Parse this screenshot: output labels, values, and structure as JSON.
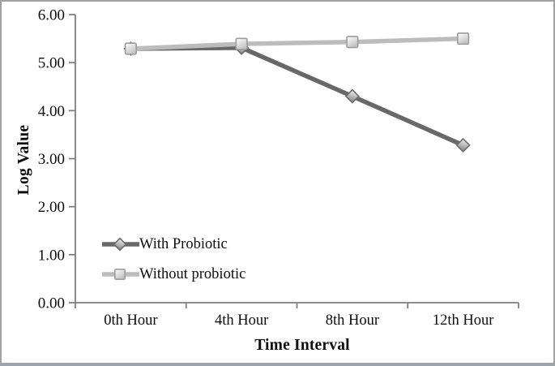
{
  "figure": {
    "background": "#ffffff",
    "frame_border_color": "#a2a2a2",
    "axis_color": "#7f7f7f",
    "text_color": "#0d0d0d"
  },
  "chart_data": {
    "type": "line",
    "title": "",
    "xlabel": "Time Interval",
    "ylabel": "Log Value",
    "categories": [
      "0th Hour",
      "4th Hour",
      "8th Hour",
      "12th Hour"
    ],
    "series": [
      {
        "name": "With Probiotic",
        "marker": "diamond",
        "line_color": "#686868",
        "marker_stroke": "#6a6a6a",
        "marker_fill_light": "#f0f0f0",
        "marker_fill_dark": "#949494",
        "values": [
          5.29,
          5.31,
          4.3,
          3.28
        ]
      },
      {
        "name": "Without probiotic",
        "marker": "square",
        "line_color": "#bcbcbc",
        "marker_stroke": "#9c9c9c",
        "marker_fill_light": "#ffffff",
        "marker_fill_dark": "#c2c2c2",
        "values": [
          5.29,
          5.39,
          5.43,
          5.5
        ]
      }
    ],
    "ylim": [
      0,
      6
    ],
    "y_ticks": [
      "0.00",
      "1.00",
      "2.00",
      "3.00",
      "4.00",
      "5.00",
      "6.00"
    ],
    "grid": false,
    "legend_position": "inside-bottom-left"
  }
}
